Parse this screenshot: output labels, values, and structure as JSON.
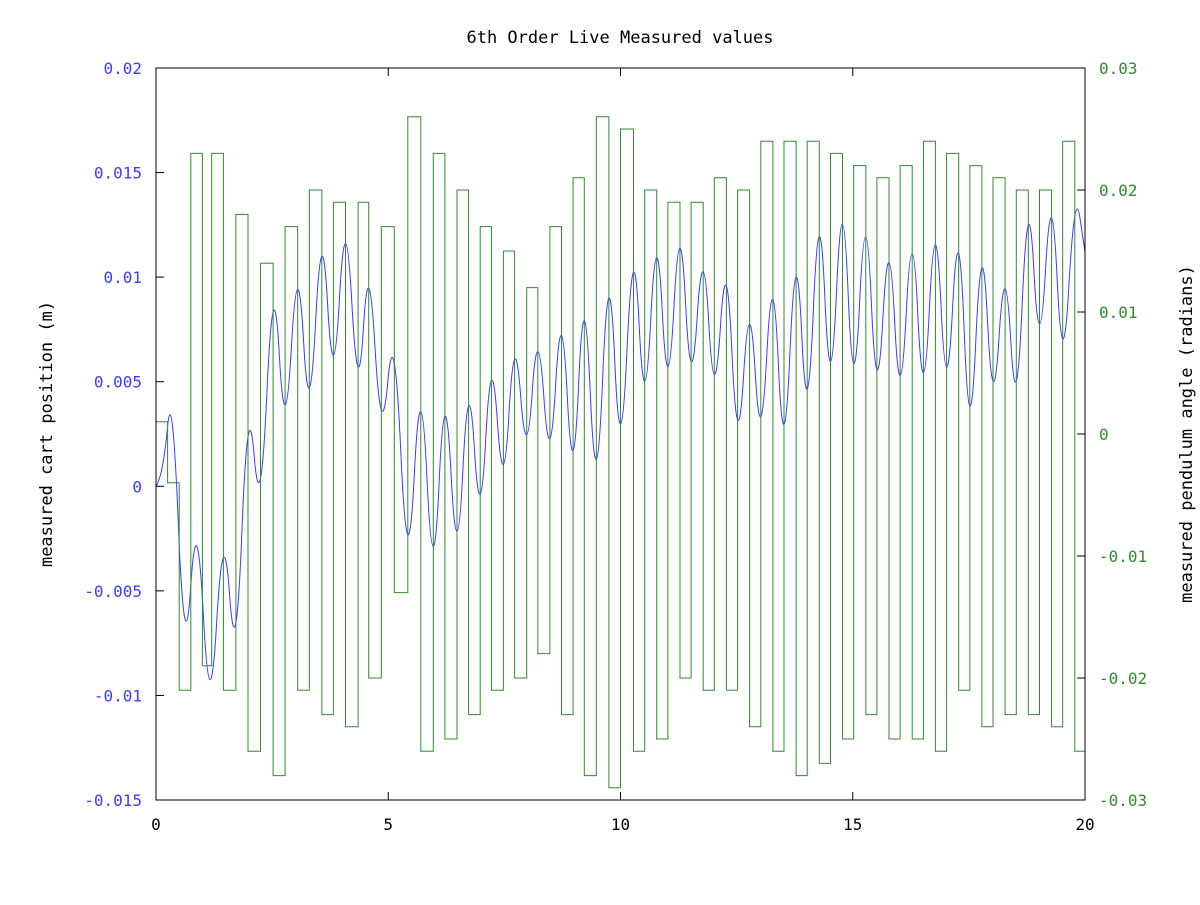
{
  "chart_data": {
    "type": "line",
    "title": "6th Order Live Measured values",
    "xlabel": "",
    "xlim": [
      0,
      20
    ],
    "x_ticks": [
      "0",
      "5",
      "10",
      "15",
      "20"
    ],
    "y_left": {
      "label": "measured cart position (m)",
      "ylim": [
        -0.015,
        0.02
      ],
      "ticks": [
        "0.02",
        "0.015",
        "0.01",
        "0.005",
        "0",
        "-0.005",
        "-0.01",
        "-0.015"
      ],
      "color": "#3b3bff"
    },
    "y_right": {
      "label": "measured pendulum angle (radians)",
      "ylim": [
        -0.03,
        0.03
      ],
      "ticks": [
        "0.03",
        "0.02",
        "0.01",
        "0",
        "-0.01",
        "-0.02",
        "-0.03"
      ],
      "color": "#2e8b2e"
    },
    "grid": false,
    "series": [
      {
        "axis": "left",
        "color": "#3b3bff",
        "x": [
          0,
          0.15,
          0.35,
          0.62,
          0.88,
          1.16,
          1.45,
          1.72,
          1.98,
          2.25,
          2.53,
          2.78,
          3.05,
          3.3,
          3.57,
          3.82,
          4.08,
          4.35,
          4.58,
          4.85,
          5.13,
          5.42,
          5.7,
          5.97,
          6.22,
          6.48,
          6.73,
          6.98,
          7.22,
          7.48,
          7.72,
          7.98,
          8.22,
          8.48,
          8.73,
          8.98,
          9.22,
          9.48,
          9.75,
          10.0,
          10.28,
          10.52,
          10.78,
          11.02,
          11.28,
          11.52,
          11.78,
          12.02,
          12.28,
          12.52,
          12.78,
          13.02,
          13.28,
          13.52,
          13.78,
          14.02,
          14.28,
          14.52,
          14.78,
          15.02,
          15.28,
          15.52,
          15.78,
          16.02,
          16.28,
          16.52,
          16.78,
          17.02,
          17.28,
          17.52,
          17.78,
          18.02,
          18.28,
          18.52,
          18.78,
          19.02,
          19.28,
          19.52,
          19.78,
          20.0
        ],
        "values": [
          0,
          0.0005,
          0.0052,
          -0.0092,
          -0.0003,
          -0.0121,
          -0.001,
          -0.0094,
          0.0051,
          -0.0022,
          0.0113,
          0.0013,
          0.012,
          0.002,
          0.0137,
          0.0037,
          0.0143,
          0.0033,
          0.0118,
          0.0015,
          0.0085,
          -0.0056,
          0.0067,
          -0.006,
          0.0063,
          -0.005,
          0.0064,
          -0.0028,
          0.0074,
          -0.0012,
          0.0082,
          0.0005,
          0.0085,
          0.0,
          0.0098,
          -0.0012,
          0.0111,
          -0.0022,
          0.0124,
          -0.0003,
          0.0133,
          0.0022,
          0.0137,
          0.003,
          0.0141,
          0.0035,
          0.0126,
          0.003,
          0.0122,
          0.0005,
          0.0101,
          0.0008,
          0.0118,
          -0.0002,
          0.0131,
          0.0015,
          0.0152,
          0.0028,
          0.0158,
          0.0027,
          0.015,
          0.0027,
          0.0134,
          0.0025,
          0.014,
          0.0025,
          0.0145,
          0.0028,
          0.0143,
          0.0005,
          0.0134,
          0.0025,
          0.0118,
          0.0022,
          0.0154,
          0.0052,
          0.0155,
          0.0044,
          0.0145,
          0.0112
        ]
      },
      {
        "axis": "right",
        "color": "#2e8b2e",
        "x": [
          0,
          0.25,
          0.5,
          0.75,
          1.0,
          1.2,
          1.45,
          1.72,
          1.98,
          2.25,
          2.52,
          2.78,
          3.05,
          3.3,
          3.57,
          3.82,
          4.08,
          4.35,
          4.58,
          4.85,
          5.13,
          5.42,
          5.7,
          5.97,
          6.22,
          6.48,
          6.73,
          6.98,
          7.22,
          7.48,
          7.72,
          7.98,
          8.22,
          8.48,
          8.73,
          8.98,
          9.22,
          9.48,
          9.75,
          10.0,
          10.28,
          10.52,
          10.78,
          11.02,
          11.28,
          11.52,
          11.78,
          12.02,
          12.28,
          12.52,
          12.78,
          13.02,
          13.28,
          13.52,
          13.78,
          14.02,
          14.28,
          14.52,
          14.78,
          15.02,
          15.28,
          15.52,
          15.78,
          16.02,
          16.28,
          16.52,
          16.78,
          17.02,
          17.28,
          17.52,
          17.78,
          18.02,
          18.28,
          18.52,
          18.78,
          19.02,
          19.28,
          19.52,
          19.78,
          20.0
        ],
        "values": [
          0.001,
          -0.004,
          -0.021,
          0.023,
          -0.019,
          0.023,
          -0.021,
          0.018,
          -0.026,
          0.014,
          -0.028,
          0.017,
          -0.021,
          0.02,
          -0.023,
          0.019,
          -0.024,
          0.019,
          -0.02,
          0.017,
          -0.013,
          0.026,
          -0.026,
          0.023,
          -0.025,
          0.02,
          -0.023,
          0.017,
          -0.021,
          0.015,
          -0.02,
          0.012,
          -0.018,
          0.017,
          -0.023,
          0.021,
          -0.028,
          0.026,
          -0.029,
          0.025,
          -0.026,
          0.02,
          -0.025,
          0.019,
          -0.02,
          0.019,
          -0.021,
          0.021,
          -0.021,
          0.02,
          -0.024,
          0.024,
          -0.026,
          0.024,
          -0.028,
          0.024,
          -0.027,
          0.023,
          -0.025,
          0.022,
          -0.023,
          0.021,
          -0.025,
          0.022,
          -0.025,
          0.024,
          -0.026,
          0.023,
          -0.021,
          0.022,
          -0.024,
          0.021,
          -0.023,
          0.02,
          -0.023,
          0.02,
          -0.024,
          0.024,
          -0.026,
          0.027
        ]
      }
    ]
  }
}
